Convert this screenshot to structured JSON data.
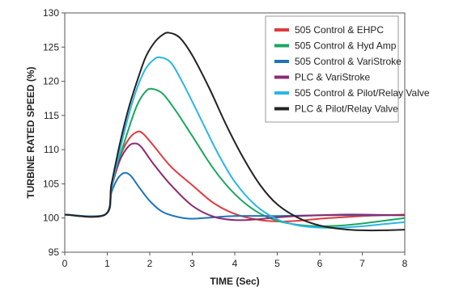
{
  "chart_data": {
    "type": "line",
    "xlabel": "TIME (Sec)",
    "ylabel": "TURBINE RATED SPEED (%)",
    "xlim": [
      0,
      8
    ],
    "ylim": [
      95,
      130
    ],
    "x_ticks": [
      "0",
      "1",
      "2",
      "3",
      "4",
      "5",
      "6",
      "7",
      "8"
    ],
    "y_ticks": [
      "95",
      "100",
      "105",
      "110",
      "115",
      "120",
      "125",
      "130"
    ],
    "grid": false,
    "legend_position": "top-right",
    "series": [
      {
        "name": "505 Control & EHPC",
        "color": "#e03a3e",
        "points": [
          [
            0,
            100.5
          ],
          [
            0.95,
            100.5
          ],
          [
            1.1,
            105
          ],
          [
            1.3,
            109
          ],
          [
            1.5,
            111.5
          ],
          [
            1.7,
            112.6
          ],
          [
            1.85,
            112.3
          ],
          [
            2.1,
            110.5
          ],
          [
            2.5,
            107.5
          ],
          [
            3,
            104.8
          ],
          [
            3.5,
            102.2
          ],
          [
            4,
            100.6
          ],
          [
            4.5,
            99.8
          ],
          [
            5,
            99.5
          ],
          [
            5.5,
            99.6
          ],
          [
            6,
            99.9
          ],
          [
            6.5,
            100.1
          ],
          [
            7,
            100.3
          ],
          [
            7.5,
            100.4
          ],
          [
            8,
            100.5
          ]
        ]
      },
      {
        "name": "505 Control & Hyd Amp",
        "color": "#1aa760",
        "points": [
          [
            0,
            100.5
          ],
          [
            0.95,
            100.5
          ],
          [
            1.1,
            104.5
          ],
          [
            1.3,
            109
          ],
          [
            1.5,
            113
          ],
          [
            1.7,
            116.5
          ],
          [
            1.9,
            118.5
          ],
          [
            2.05,
            118.9
          ],
          [
            2.3,
            118.2
          ],
          [
            2.6,
            115.8
          ],
          [
            3,
            112
          ],
          [
            3.5,
            107.2
          ],
          [
            4,
            103.5
          ],
          [
            4.5,
            101
          ],
          [
            5,
            99.6
          ],
          [
            5.5,
            99
          ],
          [
            6,
            98.8
          ],
          [
            6.5,
            98.9
          ],
          [
            7,
            99.2
          ],
          [
            7.5,
            99.6
          ],
          [
            8,
            100
          ]
        ]
      },
      {
        "name": "505 Control & VariStroke",
        "color": "#1f74b8",
        "points": [
          [
            0,
            100.5
          ],
          [
            0.95,
            100.5
          ],
          [
            1.1,
            103.8
          ],
          [
            1.25,
            105.8
          ],
          [
            1.4,
            106.6
          ],
          [
            1.55,
            106.2
          ],
          [
            1.75,
            104.5
          ],
          [
            2,
            102.5
          ],
          [
            2.3,
            100.9
          ],
          [
            2.7,
            100.1
          ],
          [
            3,
            99.9
          ],
          [
            3.5,
            100.1
          ],
          [
            4,
            100.3
          ],
          [
            5,
            100.3
          ],
          [
            6,
            100.4
          ],
          [
            7,
            100.4
          ],
          [
            8,
            100.4
          ]
        ]
      },
      {
        "name": "PLC & VariStroke",
        "color": "#8b2a6e",
        "points": [
          [
            0,
            100.5
          ],
          [
            0.95,
            100.5
          ],
          [
            1.1,
            104.5
          ],
          [
            1.3,
            108.5
          ],
          [
            1.5,
            110.5
          ],
          [
            1.65,
            110.9
          ],
          [
            1.8,
            110.4
          ],
          [
            2.1,
            107.8
          ],
          [
            2.5,
            104.8
          ],
          [
            3,
            101.8
          ],
          [
            3.5,
            100.2
          ],
          [
            4,
            99.7
          ],
          [
            4.5,
            99.8
          ],
          [
            5,
            100.1
          ],
          [
            5.5,
            100.3
          ],
          [
            6,
            100.4
          ],
          [
            6.5,
            100.5
          ],
          [
            7,
            100.5
          ],
          [
            8,
            100.4
          ]
        ]
      },
      {
        "name": "505 Control & Pilot/Relay Valve",
        "color": "#2bb5e8",
        "points": [
          [
            0,
            100.5
          ],
          [
            0.95,
            100.5
          ],
          [
            1.1,
            104.5
          ],
          [
            1.3,
            110
          ],
          [
            1.5,
            115
          ],
          [
            1.7,
            119
          ],
          [
            1.9,
            121.8
          ],
          [
            2.1,
            123.2
          ],
          [
            2.25,
            123.5
          ],
          [
            2.5,
            122.7
          ],
          [
            2.8,
            119.5
          ],
          [
            3.2,
            114.5
          ],
          [
            3.6,
            109.5
          ],
          [
            4,
            105.3
          ],
          [
            4.5,
            101.8
          ],
          [
            5,
            99.8
          ],
          [
            5.5,
            98.9
          ],
          [
            6,
            98.6
          ],
          [
            6.5,
            98.6
          ],
          [
            7,
            98.8
          ],
          [
            7.5,
            99.1
          ],
          [
            8,
            99.4
          ]
        ]
      },
      {
        "name": "PLC & Pilot/Relay Valve",
        "color": "#222222",
        "points": [
          [
            0,
            100.5
          ],
          [
            0.95,
            100.5
          ],
          [
            1.1,
            105
          ],
          [
            1.3,
            111
          ],
          [
            1.5,
            116
          ],
          [
            1.7,
            120
          ],
          [
            1.9,
            123.5
          ],
          [
            2.1,
            125.6
          ],
          [
            2.3,
            126.8
          ],
          [
            2.45,
            127.1
          ],
          [
            2.7,
            126.4
          ],
          [
            3,
            123.8
          ],
          [
            3.4,
            119
          ],
          [
            3.8,
            113.6
          ],
          [
            4.2,
            108.8
          ],
          [
            4.6,
            104.8
          ],
          [
            5,
            102
          ],
          [
            5.5,
            100
          ],
          [
            6,
            98.9
          ],
          [
            6.5,
            98.4
          ],
          [
            7,
            98.2
          ],
          [
            7.5,
            98.2
          ],
          [
            8,
            98.3
          ]
        ]
      }
    ]
  }
}
